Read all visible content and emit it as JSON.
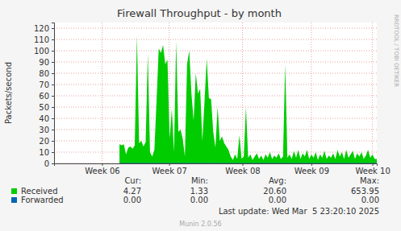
{
  "chart_data": {
    "type": "area",
    "title": "Firewall Throughput - by month",
    "y_label": "Packets/second",
    "watermark": "RRDTOOL / TOBI OETIKER",
    "last_update": "Last update: Wed Mar  5 23:20:10 2025",
    "footer": "Munin 2.0.56",
    "grid": true,
    "xlim": [
      28,
      65
    ],
    "xticks": [
      {
        "value": 33.5,
        "label": "Week 06"
      },
      {
        "value": 41.2,
        "label": "Week 07"
      },
      {
        "value": 49.6,
        "label": "Week 08"
      },
      {
        "value": 57.5,
        "label": "Week 09"
      },
      {
        "value": 64.5,
        "label": "Week 10"
      }
    ],
    "ylim": [
      0,
      125
    ],
    "yticks": [
      0,
      10,
      20,
      30,
      40,
      50,
      60,
      70,
      80,
      90,
      100,
      110,
      120
    ],
    "stats_columns": [
      "Cur:",
      "Min:",
      "Avg:",
      "Max:"
    ],
    "x": [
      35.5,
      35.75,
      36,
      36.25,
      36.5,
      36.75,
      37,
      37.25,
      37.5,
      37.75,
      38,
      38.25,
      38.5,
      38.75,
      39,
      39.25,
      39.5,
      39.75,
      40,
      40.25,
      40.5,
      40.75,
      41,
      41.25,
      41.5,
      41.75,
      42,
      42.25,
      42.5,
      42.75,
      43,
      43.25,
      43.5,
      43.75,
      44,
      44.25,
      44.5,
      44.75,
      45,
      45.25,
      45.5,
      45.75,
      46,
      46.25,
      46.5,
      46.75,
      47,
      47.25,
      47.5,
      47.75,
      48,
      48.25,
      48.5,
      48.75,
      49,
      49.25,
      49.5,
      49.75,
      50,
      50.25,
      50.5,
      50.75,
      51,
      51.25,
      51.5,
      51.75,
      52,
      52.25,
      52.5,
      52.75,
      53,
      53.25,
      53.5,
      53.75,
      54,
      54.25,
      54.5,
      54.75,
      55,
      55.25,
      55.5,
      55.75,
      56,
      56.25,
      56.5,
      56.75,
      57,
      57.25,
      57.5,
      57.75,
      58,
      58.25,
      58.5,
      58.75,
      59,
      59.25,
      59.5,
      59.75,
      60,
      60.25,
      60.5,
      60.75,
      61,
      61.25,
      61.5,
      61.75,
      62,
      62.25,
      62.5,
      62.75,
      63,
      63.25,
      63.5,
      63.75,
      64,
      64.25,
      64.5,
      64.75,
      65
    ],
    "series": [
      {
        "name": "Received",
        "color": "#00cc00",
        "type": "area",
        "stats": [
          "4.27",
          "1.33",
          "20.60",
          "653.95"
        ],
        "values": [
          17,
          16,
          17,
          8,
          14,
          15,
          13,
          16,
          113,
          18,
          20,
          15,
          19,
          97,
          10,
          6,
          12,
          55,
          102,
          98,
          105,
          88,
          92,
          22,
          48,
          10,
          108,
          28,
          30,
          22,
          6,
          88,
          100,
          62,
          38,
          80,
          62,
          66,
          20,
          55,
          93,
          58,
          57,
          28,
          14,
          50,
          20,
          24,
          18,
          15,
          12,
          6,
          3,
          8,
          4,
          25,
          4,
          6,
          50,
          5,
          8,
          3,
          6,
          9,
          4,
          7,
          3,
          8,
          5,
          10,
          4,
          7,
          5,
          9,
          4,
          6,
          88,
          5,
          8,
          4,
          11,
          5,
          12,
          4,
          9,
          6,
          12,
          4,
          8,
          5,
          10,
          3,
          8,
          5,
          11,
          4,
          7,
          5,
          9,
          4,
          12,
          6,
          10,
          4,
          12,
          5,
          8,
          11,
          4,
          9,
          6,
          10,
          4,
          7,
          12,
          5,
          8,
          4,
          4
        ]
      },
      {
        "name": "Forwarded",
        "color": "#0066b3",
        "type": "line",
        "stats": [
          "0.00",
          "0.00",
          "0.00",
          "0.00"
        ],
        "values": [
          0,
          0,
          0,
          0,
          0,
          0,
          0,
          0,
          0,
          0,
          0,
          0,
          0,
          0,
          0,
          0,
          0,
          0,
          0,
          0,
          0,
          0,
          0,
          0,
          0,
          0,
          0,
          0,
          0,
          0,
          0,
          0,
          0,
          0,
          0,
          0,
          0,
          0,
          0,
          0,
          0,
          0,
          0,
          0,
          0,
          0,
          0,
          0,
          0,
          0,
          0,
          0,
          0,
          0,
          0,
          0,
          0,
          0,
          0,
          0,
          0,
          0,
          0,
          0,
          0,
          0,
          0,
          0,
          0,
          0,
          0,
          0,
          0,
          0,
          0,
          0,
          0,
          0,
          0,
          0,
          0,
          0,
          0,
          0,
          0,
          0,
          0,
          0,
          0,
          0,
          0,
          0,
          0,
          0,
          0,
          0,
          0,
          0,
          0,
          0,
          0,
          0,
          0,
          0,
          0,
          0,
          0,
          0,
          0,
          0,
          0,
          0,
          0,
          0,
          0,
          0,
          0,
          0,
          0
        ]
      }
    ]
  }
}
